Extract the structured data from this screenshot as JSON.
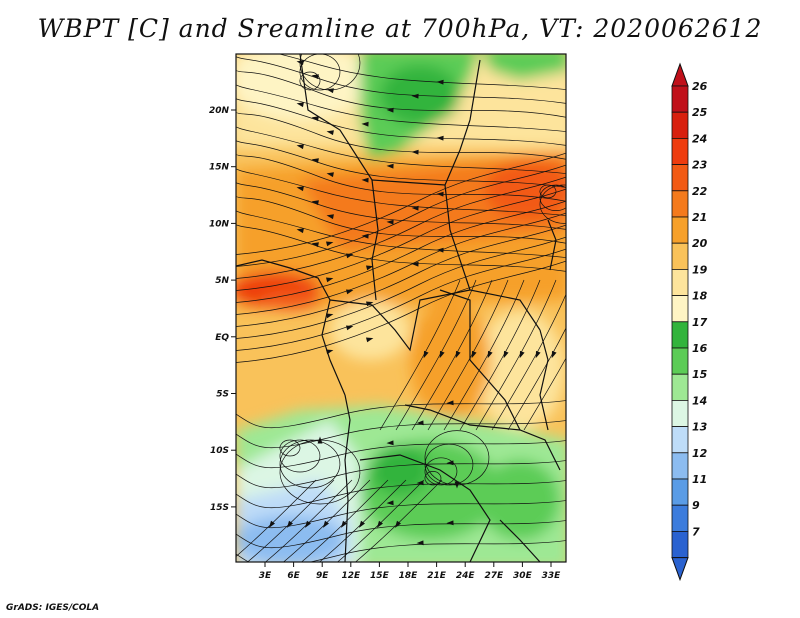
{
  "title": "WBPT [C] and Sreamline at 700hPa, VT: 2020062612",
  "credit": "GrADS: IGES/COLA",
  "map": {
    "lon_labels": [
      "3E",
      "6E",
      "9E",
      "12E",
      "15E",
      "18E",
      "21E",
      "24E",
      "27E",
      "30E",
      "33E"
    ],
    "lat_labels": [
      "20N",
      "15N",
      "10N",
      "5N",
      "EQ",
      "5S",
      "10S",
      "15S"
    ]
  },
  "colorbar": {
    "labels": [
      "26",
      "25",
      "24",
      "23",
      "22",
      "21",
      "20",
      "19",
      "18",
      "17",
      "16",
      "15",
      "14",
      "13",
      "12",
      "11",
      "9",
      "7"
    ],
    "colors": [
      "#c0101a",
      "#d8200e",
      "#ee3c0e",
      "#f25a14",
      "#f47a1c",
      "#f6a02a",
      "#f9c25a",
      "#fde49c",
      "#fef4c4",
      "#32b43c",
      "#5ccc56",
      "#9ee894",
      "#dcf6e4",
      "#bedcf8",
      "#8cbcf0",
      "#5a9ce6",
      "#3c7cdc",
      "#2a62d0"
    ]
  }
}
